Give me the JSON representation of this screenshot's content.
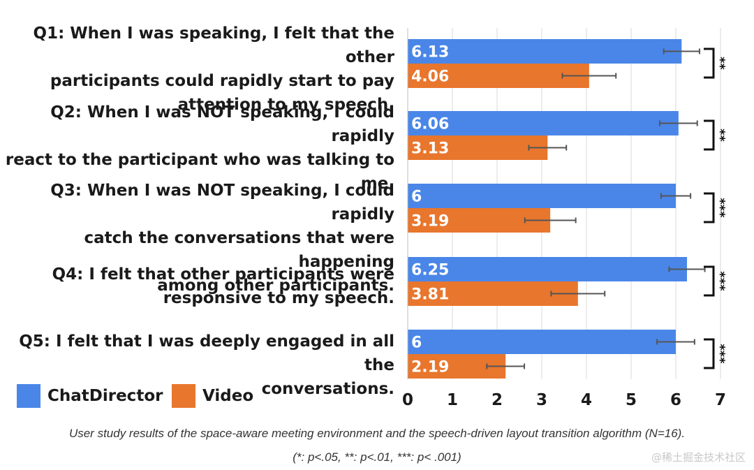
{
  "chart_data": {
    "type": "bar",
    "orientation": "horizontal",
    "categories": [
      "Q1: When I was speaking, I felt that the other participants could rapidly start to pay attention to my speech.",
      "Q2: When I was NOT speaking, I could rapidly react to the participant who was talking to me.",
      "Q3: When I was NOT speaking, I could rapidly catch the conversations that were happening among other participants.",
      "Q4: I felt that other participants were responsive to my speech.",
      "Q5: I felt that I was deeply engaged in all the conversations."
    ],
    "category_lines": [
      [
        "Q1: When I was speaking, I felt that the other",
        "participants could rapidly start to pay",
        "attention to my speech."
      ],
      [
        "Q2: When I was NOT speaking, I could rapidly",
        "react to the participant who was talking to",
        "me."
      ],
      [
        "Q3: When I was NOT speaking, I could rapidly",
        "catch the conversations that were happening",
        "among other participants."
      ],
      [
        "Q4: I felt that other participants were",
        "responsive to my speech."
      ],
      [
        "Q5: I felt that I was deeply engaged in all the",
        "conversations."
      ]
    ],
    "series": [
      {
        "name": "ChatDirector",
        "color": "#4a86e8",
        "values": [
          6.13,
          6.06,
          6,
          6.25,
          6
        ],
        "value_labels": [
          "6.13",
          "6.06",
          "6",
          "6.25",
          "6"
        ],
        "error": [
          0.4,
          0.42,
          0.33,
          0.4,
          0.42
        ]
      },
      {
        "name": "Video",
        "color": "#e8762d",
        "values": [
          4.06,
          3.13,
          3.19,
          3.81,
          2.19
        ],
        "value_labels": [
          "4.06",
          "3.13",
          "3.19",
          "3.81",
          "2.19"
        ],
        "error": [
          0.6,
          0.42,
          0.57,
          0.6,
          0.42
        ]
      }
    ],
    "significance": [
      "**",
      "**",
      "***",
      "***",
      "***"
    ],
    "xlim": [
      0,
      7
    ],
    "xticks": [
      "0",
      "1",
      "2",
      "3",
      "4",
      "5",
      "6",
      "7"
    ],
    "grid": true,
    "legend_position": "bottom-left"
  },
  "caption": {
    "line1": "User study results of the space-aware meeting environment and the speech-driven layout transition algorithm (N=16).",
    "line2": "(*: p<.05, **: p<.01, ***: p< .001)"
  },
  "watermark": "@稀土掘金技术社区"
}
